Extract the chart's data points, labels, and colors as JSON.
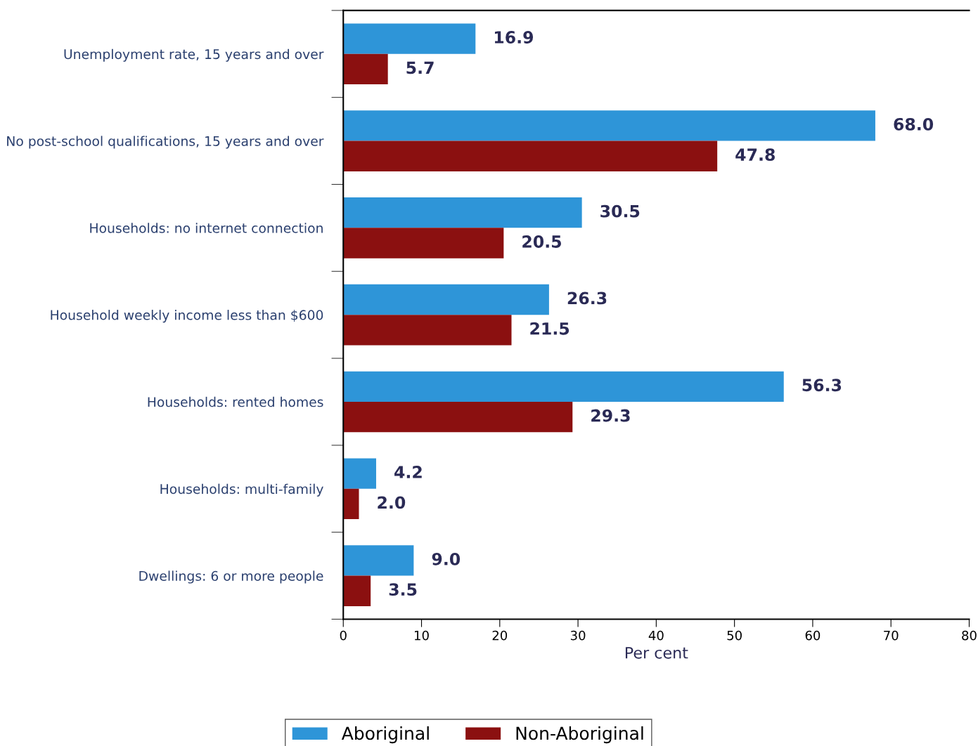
{
  "chart_data": {
    "type": "bar",
    "orientation": "horizontal",
    "xlabel": "Per cent",
    "categories": [
      "Unemployment rate, 15 years and over",
      "No post-school qualifications, 15 years and over",
      "Households: no internet connection",
      "Household weekly income less than $600",
      "Households: rented homes",
      "Households: multi-family",
      "Dwellings: 6 or more people"
    ],
    "series": [
      {
        "name": "Aboriginal",
        "color": "#2e95d8",
        "values": [
          16.9,
          68.0,
          30.5,
          26.3,
          56.3,
          4.2,
          9.0
        ],
        "value_labels": [
          "16.9",
          "68.0",
          "30.5",
          "26.3",
          "56.3",
          "4.2",
          "9.0"
        ]
      },
      {
        "name": "Non-Aboriginal",
        "color": "#8b1010",
        "values": [
          5.7,
          47.8,
          20.5,
          21.5,
          29.3,
          2.0,
          3.5
        ],
        "value_labels": [
          "5.7",
          "47.8",
          "20.5",
          "21.5",
          "29.3",
          "2.0",
          "3.5"
        ]
      }
    ],
    "xlim": [
      0,
      80
    ],
    "xticks": [
      0,
      10,
      20,
      30,
      40,
      50,
      60,
      70,
      80
    ],
    "grid": false,
    "legend": "bottom"
  }
}
